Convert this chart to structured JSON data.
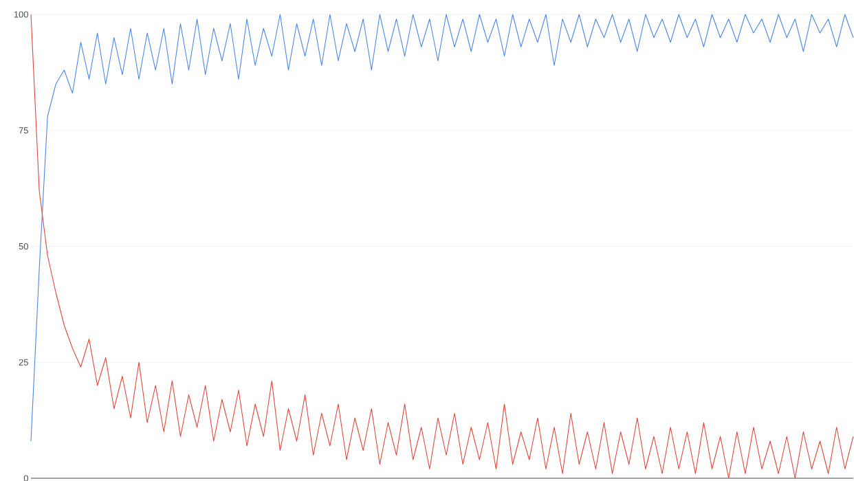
{
  "chart_data": {
    "type": "line",
    "categories": [
      null,
      null,
      null,
      null,
      null,
      null,
      null,
      null,
      null,
      null,
      null,
      null,
      null,
      null,
      null,
      null,
      null,
      null,
      null,
      null,
      null,
      null,
      null,
      null,
      null,
      null,
      null,
      null,
      null,
      null,
      null,
      null,
      null,
      null,
      null,
      null,
      null,
      null,
      null,
      null,
      null,
      null,
      null,
      null,
      null,
      null,
      null,
      null,
      null,
      null,
      null,
      null,
      null,
      null,
      null,
      null,
      null,
      null,
      null,
      null,
      null,
      null,
      null,
      null,
      null,
      null,
      null,
      null,
      null,
      null,
      null,
      null,
      null,
      null,
      null,
      null,
      null,
      null,
      null,
      null,
      null,
      null,
      null,
      null,
      null,
      null,
      null,
      null,
      null,
      null,
      null,
      null,
      null,
      null,
      null,
      null,
      null,
      null,
      null,
      null
    ],
    "series": [
      {
        "color": "#4a86e8",
        "values": [
          8,
          45,
          78,
          85,
          88,
          83,
          94,
          86,
          96,
          85,
          95,
          87,
          97,
          86,
          96,
          88,
          97,
          85,
          98,
          88,
          99,
          87,
          97,
          90,
          98,
          86,
          99,
          89,
          97,
          91,
          100,
          88,
          98,
          91,
          99,
          89,
          100,
          90,
          98,
          92,
          99,
          88,
          100,
          92,
          99,
          91,
          100,
          93,
          99,
          90,
          100,
          93,
          99,
          92,
          100,
          94,
          99,
          91,
          100,
          93,
          99,
          94,
          100,
          89,
          99,
          94,
          100,
          93,
          99,
          95,
          100,
          94,
          99,
          92,
          100,
          95,
          99,
          94,
          100,
          95,
          99,
          93,
          100,
          95,
          99,
          94,
          100,
          96,
          99,
          94,
          100,
          95,
          99,
          92,
          100,
          96,
          99,
          93,
          100,
          95
        ]
      },
      {
        "color": "#e0453c",
        "values": [
          100,
          62,
          48,
          40,
          33,
          28,
          24,
          30,
          20,
          26,
          15,
          22,
          13,
          25,
          12,
          20,
          10,
          21,
          9,
          18,
          11,
          20,
          8,
          17,
          10,
          19,
          7,
          16,
          9,
          21,
          6,
          15,
          8,
          18,
          5,
          14,
          7,
          16,
          4,
          13,
          6,
          15,
          3,
          12,
          5,
          16,
          4,
          11,
          2,
          13,
          5,
          14,
          3,
          11,
          4,
          12,
          2,
          16,
          3,
          10,
          4,
          13,
          2,
          11,
          1,
          14,
          3,
          10,
          2,
          12,
          1,
          10,
          3,
          13,
          2,
          9,
          1,
          11,
          2,
          10,
          1,
          12,
          2,
          9,
          0,
          10,
          1,
          11,
          2,
          8,
          1,
          9,
          0,
          10,
          2,
          8,
          1,
          11,
          2,
          9
        ]
      }
    ],
    "ylim": [
      0,
      100
    ],
    "yticks": [
      0,
      25,
      50,
      75,
      100
    ],
    "grid": "y",
    "tick_labels": "y",
    "marker": "none",
    "line_style": "solid"
  }
}
